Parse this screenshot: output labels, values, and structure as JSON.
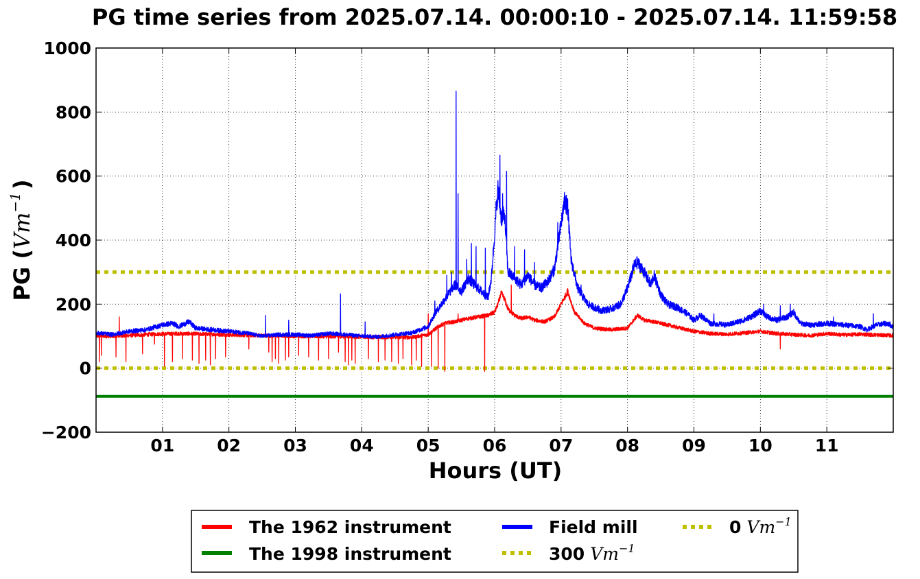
{
  "chart_data": {
    "type": "line",
    "title": "PG time series from 2025.07.14. 00:00:10 - 2025.07.14. 11:59:58",
    "xlabel": "Hours (UT)",
    "ylabel_text": "PG (",
    "ylabel_unit": "Vm",
    "ylabel_exp": "−1",
    "ylabel_close": ")",
    "xlim": [
      0,
      12
    ],
    "ylim": [
      -200,
      1000
    ],
    "grid": true,
    "legend_placement": "below",
    "x_ticks": [
      1,
      2,
      3,
      4,
      5,
      6,
      7,
      8,
      9,
      10,
      11
    ],
    "x_tick_labels": [
      "01",
      "02",
      "03",
      "04",
      "05",
      "06",
      "07",
      "08",
      "09",
      "10",
      "11"
    ],
    "y_ticks": [
      -200,
      0,
      200,
      400,
      600,
      800,
      1000
    ],
    "y_tick_labels": [
      "−200",
      "0",
      "200",
      "400",
      "600",
      "800",
      "1000"
    ],
    "series": [
      {
        "name": "The 1962 instrument",
        "color": "#ff0000",
        "style": "solid",
        "x": [
          0.0,
          0.25,
          0.5,
          0.75,
          1.0,
          1.25,
          1.5,
          1.75,
          2.0,
          2.25,
          2.5,
          2.75,
          3.0,
          3.25,
          3.5,
          3.75,
          4.0,
          4.25,
          4.5,
          4.75,
          5.0,
          5.15,
          5.25,
          5.4,
          5.5,
          5.6,
          5.75,
          5.9,
          6.0,
          6.05,
          6.1,
          6.15,
          6.2,
          6.3,
          6.4,
          6.5,
          6.6,
          6.75,
          6.9,
          7.0,
          7.1,
          7.2,
          7.35,
          7.5,
          7.75,
          8.0,
          8.15,
          8.25,
          8.4,
          8.6,
          8.8,
          9.0,
          9.25,
          9.5,
          9.75,
          10.0,
          10.25,
          10.5,
          10.75,
          11.0,
          11.25,
          11.5,
          11.75,
          12.0
        ],
        "y": [
          100,
          100,
          102,
          105,
          107,
          108,
          107,
          106,
          104,
          103,
          102,
          101,
          100,
          100,
          99,
          99,
          98,
          97,
          97,
          96,
          105,
          130,
          140,
          145,
          150,
          155,
          160,
          165,
          175,
          200,
          235,
          215,
          185,
          165,
          155,
          160,
          150,
          145,
          160,
          200,
          240,
          175,
          140,
          125,
          120,
          125,
          165,
          150,
          145,
          135,
          125,
          115,
          108,
          106,
          110,
          115,
          108,
          105,
          102,
          108,
          104,
          106,
          104,
          102
        ],
        "spikes_down": [
          [
            0.05,
            20
          ],
          [
            0.08,
            40
          ],
          [
            0.3,
            35
          ],
          [
            0.45,
            20
          ],
          [
            0.7,
            45
          ],
          [
            0.88,
            75
          ],
          [
            1.03,
            5
          ],
          [
            1.15,
            20
          ],
          [
            1.3,
            30
          ],
          [
            1.45,
            25
          ],
          [
            1.55,
            15
          ],
          [
            1.65,
            25
          ],
          [
            1.72,
            10
          ],
          [
            1.8,
            30
          ],
          [
            1.95,
            35
          ],
          [
            2.3,
            60
          ],
          [
            2.6,
            50
          ],
          [
            2.65,
            20
          ],
          [
            2.7,
            30
          ],
          [
            2.75,
            15
          ],
          [
            2.85,
            25
          ],
          [
            2.9,
            35
          ],
          [
            3.05,
            40
          ],
          [
            3.2,
            35
          ],
          [
            3.35,
            25
          ],
          [
            3.5,
            30
          ],
          [
            3.65,
            50
          ],
          [
            3.75,
            20
          ],
          [
            3.8,
            10
          ],
          [
            3.85,
            25
          ],
          [
            3.9,
            15
          ],
          [
            4.1,
            30
          ],
          [
            4.25,
            20
          ],
          [
            4.35,
            25
          ],
          [
            4.45,
            20
          ],
          [
            4.55,
            15
          ],
          [
            4.62,
            30
          ],
          [
            4.75,
            10
          ],
          [
            4.82,
            25
          ],
          [
            4.9,
            5
          ],
          [
            5.0,
            15
          ],
          [
            5.05,
            5
          ],
          [
            5.15,
            0
          ],
          [
            5.25,
            -10
          ],
          [
            5.85,
            -10
          ],
          [
            10.3,
            60
          ]
        ],
        "spikes_up": [
          [
            0.35,
            160
          ],
          [
            5.0,
            170
          ],
          [
            5.45,
            170
          ],
          [
            6.25,
            260
          ]
        ]
      },
      {
        "name": "The 1998 instrument",
        "color": "#008000",
        "style": "solid",
        "x": [
          0,
          12
        ],
        "y": [
          -88,
          -88
        ]
      },
      {
        "name": "Field mill",
        "color": "#0000ff",
        "style": "solid",
        "x": [
          0.0,
          0.25,
          0.5,
          0.75,
          1.0,
          1.15,
          1.25,
          1.4,
          1.5,
          1.75,
          2.0,
          2.25,
          2.5,
          2.75,
          3.0,
          3.25,
          3.5,
          3.75,
          4.0,
          4.25,
          4.5,
          4.75,
          5.0,
          5.1,
          5.2,
          5.3,
          5.4,
          5.5,
          5.6,
          5.7,
          5.8,
          5.9,
          5.95,
          6.0,
          6.05,
          6.1,
          6.15,
          6.2,
          6.3,
          6.4,
          6.5,
          6.6,
          6.7,
          6.8,
          6.9,
          6.95,
          7.0,
          7.05,
          7.1,
          7.15,
          7.25,
          7.4,
          7.5,
          7.6,
          7.75,
          7.9,
          8.0,
          8.1,
          8.15,
          8.25,
          8.35,
          8.4,
          8.5,
          8.6,
          8.75,
          8.9,
          9.0,
          9.1,
          9.25,
          9.5,
          9.75,
          9.9,
          10.0,
          10.1,
          10.25,
          10.4,
          10.5,
          10.6,
          10.75,
          11.0,
          11.25,
          11.5,
          11.6,
          11.75,
          11.9,
          12.0
        ],
        "y": [
          110,
          105,
          115,
          120,
          135,
          140,
          130,
          145,
          125,
          120,
          115,
          110,
          100,
          105,
          105,
          102,
          108,
          105,
          100,
          98,
          105,
          110,
          130,
          170,
          200,
          230,
          260,
          240,
          280,
          260,
          240,
          220,
          280,
          420,
          560,
          470,
          480,
          300,
          280,
          260,
          290,
          260,
          250,
          270,
          310,
          380,
          450,
          520,
          500,
          340,
          250,
          200,
          190,
          180,
          185,
          200,
          250,
          320,
          330,
          300,
          260,
          290,
          230,
          200,
          190,
          170,
          150,
          165,
          140,
          135,
          150,
          165,
          180,
          160,
          150,
          160,
          175,
          140,
          135,
          140,
          135,
          130,
          120,
          135,
          140,
          130
        ],
        "spikes_up": [
          [
            1.42,
            148
          ],
          [
            2.55,
            165
          ],
          [
            2.9,
            150
          ],
          [
            3.68,
            232
          ],
          [
            4.05,
            145
          ],
          [
            5.1,
            210
          ],
          [
            5.28,
            290
          ],
          [
            5.35,
            300
          ],
          [
            5.42,
            865
          ],
          [
            5.45,
            545
          ],
          [
            5.58,
            340
          ],
          [
            5.65,
            390
          ],
          [
            5.72,
            380
          ],
          [
            5.86,
            375
          ],
          [
            6.02,
            520
          ],
          [
            6.08,
            665
          ],
          [
            6.12,
            545
          ],
          [
            6.18,
            615
          ],
          [
            6.3,
            380
          ],
          [
            6.45,
            370
          ],
          [
            6.6,
            330
          ],
          [
            6.95,
            455
          ],
          [
            7.08,
            540
          ],
          [
            7.3,
            260
          ],
          [
            8.15,
            340
          ],
          [
            8.4,
            300
          ],
          [
            9.3,
            170
          ],
          [
            10.05,
            200
          ],
          [
            10.3,
            195
          ],
          [
            10.45,
            200
          ],
          [
            11.1,
            160
          ],
          [
            11.7,
            170
          ],
          [
            11.95,
            145
          ]
        ]
      },
      {
        "name": "300 Vm⁻¹",
        "label_text": "300",
        "label_unit": "Vm",
        "label_exp": "−1",
        "color": "#bfbf00",
        "style": "dotted",
        "x": [
          0,
          12
        ],
        "y": [
          300,
          300
        ]
      },
      {
        "name": "0 Vm⁻¹",
        "label_text": "0",
        "label_unit": "Vm",
        "label_exp": "−1",
        "color": "#bfbf00",
        "style": "dotted",
        "x": [
          0,
          12
        ],
        "y": [
          0,
          0
        ]
      }
    ]
  }
}
